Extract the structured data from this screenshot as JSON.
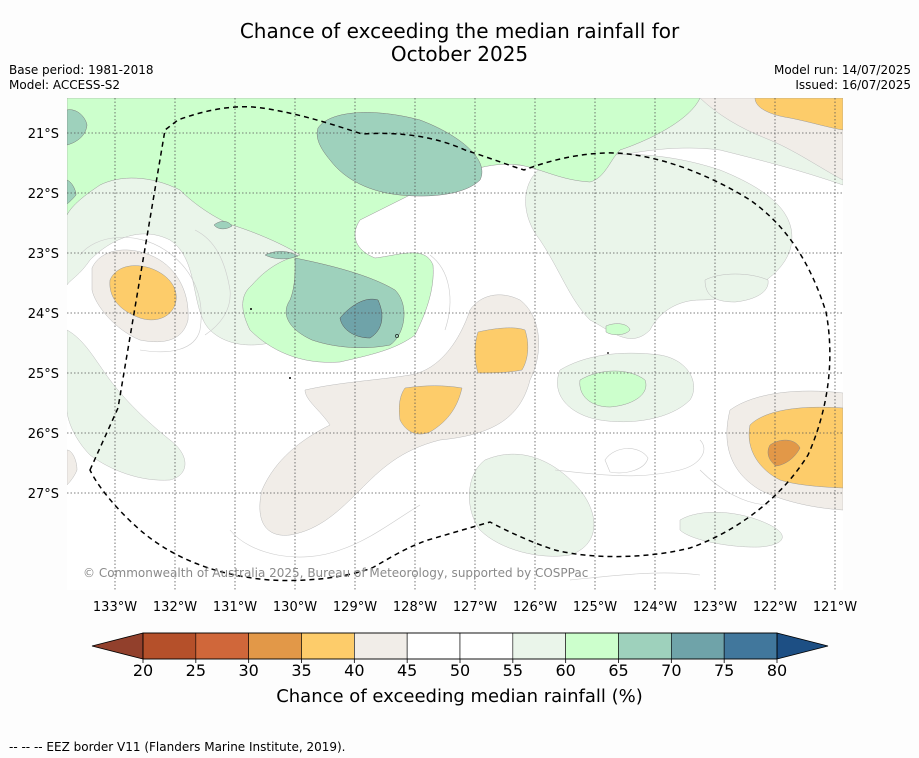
{
  "title_line1": "Chance of exceeding the median rainfall for",
  "title_line2": "October 2025",
  "base_period": "Base period: 1981-2018",
  "model": "Model: ACCESS-S2",
  "model_run": "Model run: 14/07/2025",
  "issued": "Issued: 16/07/2025",
  "copyright": "© Commonwealth of Australia 2025, Bureau of Meteorology, supported by COSPPac",
  "lat_labels": [
    "21°S",
    "22°S",
    "23°S",
    "24°S",
    "25°S",
    "26°S",
    "27°S"
  ],
  "lon_labels": [
    "133°W",
    "132°W",
    "131°W",
    "130°W",
    "129°W",
    "128°W",
    "127°W",
    "126°W",
    "125°W",
    "124°W",
    "123°W",
    "122°W",
    "121°W"
  ],
  "colorbar": {
    "ticks": [
      "20",
      "25",
      "30",
      "35",
      "40",
      "45",
      "50",
      "55",
      "60",
      "65",
      "70",
      "75",
      "80"
    ],
    "colors": [
      "#b5502a",
      "#d0673a",
      "#e29848",
      "#fdcc6a",
      "#f1ede8",
      "#ffffff",
      "#ffffff",
      "#eaf5ea",
      "#ccffcc",
      "#9ed1bc",
      "#6fa3a9",
      "#41779c"
    ],
    "under_color": "#92402c",
    "over_color": "#1d4f84",
    "label": "Chance of exceeding median rainfall (%)"
  },
  "footnote": "--  --  -- EEZ border V11 (Flanders Marine Institute, 2019)."
}
